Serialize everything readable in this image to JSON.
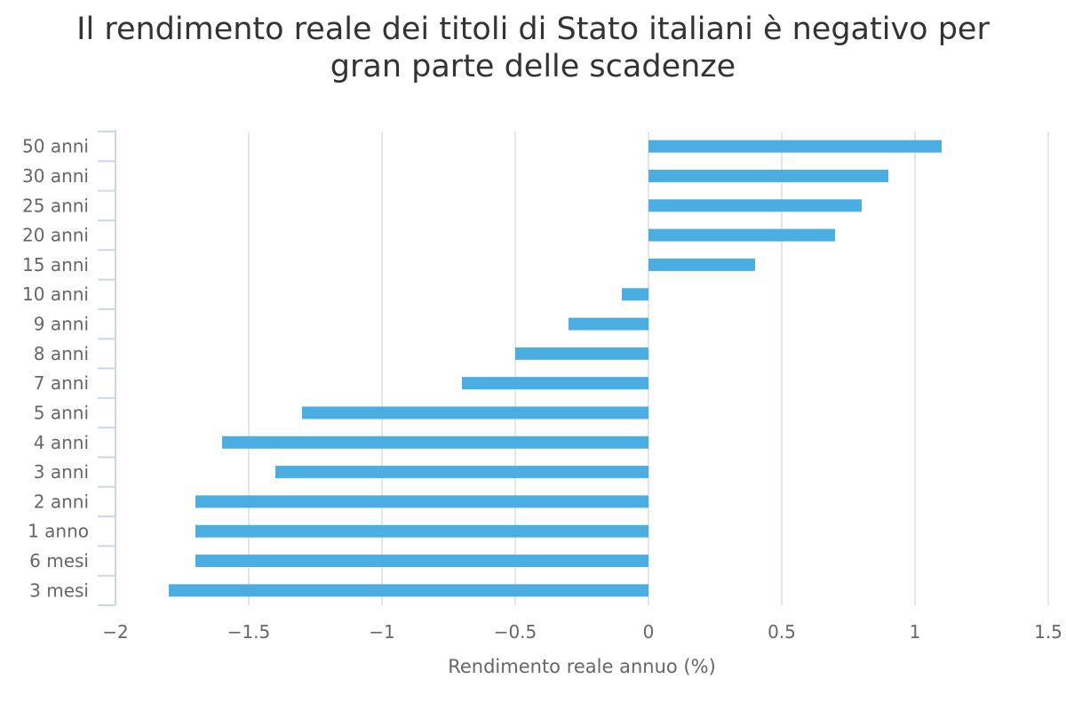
{
  "chart_data": {
    "type": "bar",
    "orientation": "horizontal",
    "title_lines": [
      "Il rendimento reale dei titoli di Stato italiani è negativo per",
      "gran parte delle scadenze"
    ],
    "xlabel": "Rendimento reale annuo (%)",
    "ylabel": "",
    "xlim": [
      -2,
      1.5
    ],
    "x_ticks": [
      -2,
      -1.5,
      -1,
      -0.5,
      0,
      0.5,
      1,
      1.5
    ],
    "x_tick_labels": [
      "−2",
      "−1.5",
      "−1",
      "−0.5",
      "0",
      "0.5",
      "1",
      "1.5"
    ],
    "grid": "vertical",
    "legend": "none",
    "bar_color": "#4aaee3",
    "categories": [
      "50 anni",
      "30 anni",
      "25 anni",
      "20 anni",
      "15 anni",
      "10 anni",
      "9 anni",
      "8 anni",
      "7 anni",
      "5 anni",
      "4 anni",
      "3 anni",
      "2 anni",
      "1 anno",
      "6 mesi",
      "3 mesi"
    ],
    "values": [
      1.1,
      0.9,
      0.8,
      0.7,
      0.4,
      -0.1,
      -0.3,
      -0.5,
      -0.7,
      -1.3,
      -1.6,
      -1.4,
      -1.7,
      -1.7,
      -1.7,
      -1.8
    ]
  }
}
